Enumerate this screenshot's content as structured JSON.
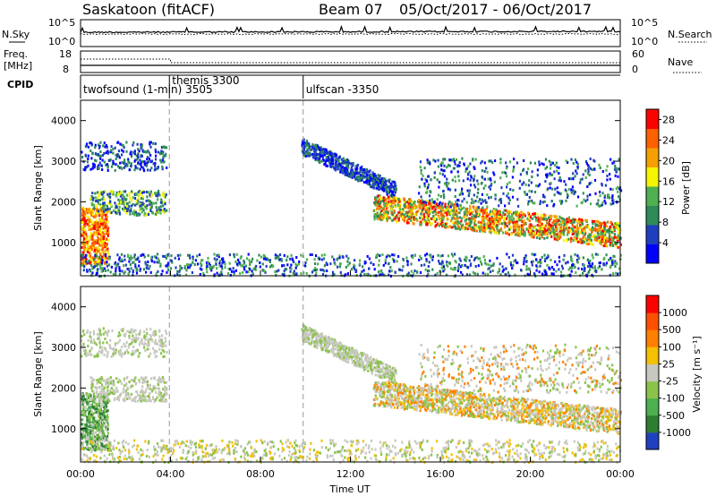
{
  "title": {
    "station": "Saskatoon (fitACF)",
    "beam": "Beam 07",
    "dates": "05/Oct/2017 - 06/Oct/2017"
  },
  "strip_nsky": {
    "label": "N.Sky",
    "right_label": "N.Search",
    "left_ticks": [
      "10^5",
      "10^0"
    ],
    "right_ticks": [
      "10^5",
      "10^0"
    ]
  },
  "strip_freq": {
    "label_line1": "Freq.",
    "label_line2": "[MHz]",
    "right_label": "Nave",
    "left_ticks": [
      "18",
      "8"
    ],
    "right_ticks": [
      "60",
      "0"
    ]
  },
  "cpid": {
    "label": "CPID",
    "segments": [
      {
        "start_hour": 0.0,
        "text": "twofsound (1-min) 3505"
      },
      {
        "start_hour": 3.95,
        "text": "themis 3300"
      },
      {
        "start_hour": 9.9,
        "text": "ulfscan -3350"
      }
    ]
  },
  "chart_data": [
    {
      "type": "heatmap",
      "name": "power",
      "ylabel": "Slant Range [km]",
      "ylim": [
        180,
        4500
      ],
      "xlim": [
        0,
        24
      ],
      "yticks": [
        "1000",
        "2000",
        "3000",
        "4000"
      ],
      "ytick_values": [
        1000,
        2000,
        3000,
        4000
      ],
      "colorbar": {
        "label": "Power [dB]",
        "ticks": [
          "4",
          "8",
          "12",
          "16",
          "20",
          "24",
          "28"
        ],
        "tick_values": [
          4,
          8,
          12,
          16,
          20,
          24,
          28
        ],
        "range": [
          0,
          30
        ],
        "colors": [
          "#0000ff",
          "#1f3fbf",
          "#2e8b57",
          "#4fb04f",
          "#f5f500",
          "#f5a000",
          "#ff6000",
          "#ff0000"
        ]
      }
    },
    {
      "type": "heatmap",
      "name": "velocity",
      "ylabel": "Slant Range [km]",
      "ylim": [
        180,
        4500
      ],
      "xlim": [
        0,
        24
      ],
      "yticks": [
        "1000",
        "2000",
        "3000",
        "4000"
      ],
      "ytick_values": [
        1000,
        2000,
        3000,
        4000
      ],
      "colorbar": {
        "label": "Velocity [m s⁻¹]",
        "ticks": [
          "1000",
          "500",
          "100",
          "25",
          "-25",
          "-100",
          "-500",
          "-1000"
        ],
        "colors": [
          "#2040c0",
          "#2e7d32",
          "#4caf50",
          "#8bc34a",
          "#c8c8c0",
          "#f5c000",
          "#ff8000",
          "#ff5000",
          "#ff0000"
        ]
      }
    }
  ],
  "xaxis": {
    "label": "Time UT",
    "ticks": [
      "00:00",
      "04:00",
      "08:00",
      "12:00",
      "16:00",
      "20:00",
      "00:00"
    ],
    "tick_values": [
      0,
      4,
      8,
      12,
      16,
      20,
      24
    ]
  }
}
